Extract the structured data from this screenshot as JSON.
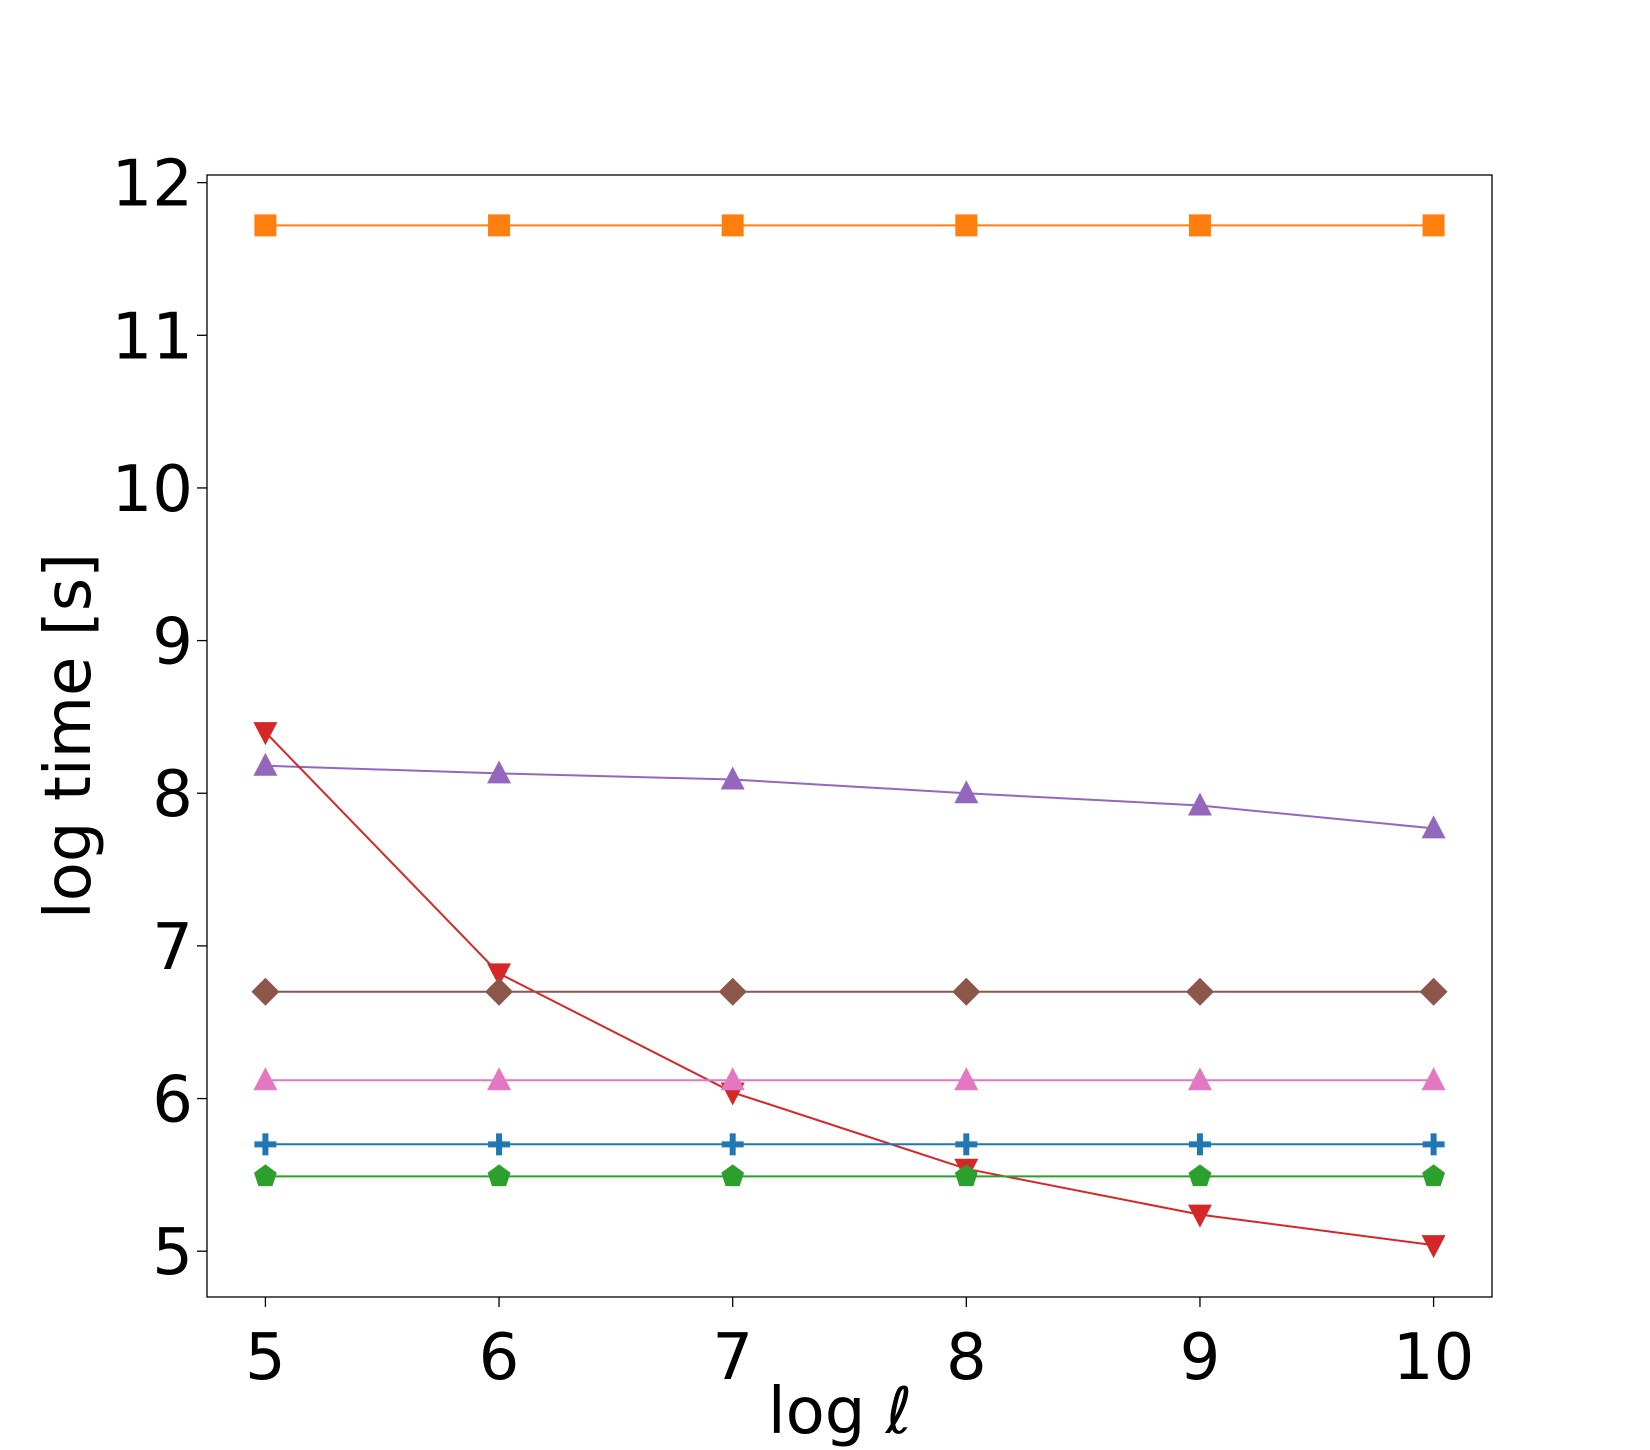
{
  "chart_data": {
    "type": "line",
    "title": "",
    "xlabel": "log ℓ",
    "ylabel": "log time [s]",
    "xlim": [
      4.75,
      10.25
    ],
    "ylim": [
      4.7,
      12.05
    ],
    "x_ticks": [
      5,
      6,
      7,
      8,
      9,
      10
    ],
    "y_ticks": [
      5,
      6,
      7,
      8,
      9,
      10,
      11,
      12
    ],
    "grid": false,
    "legend": "none",
    "x": [
      5,
      6,
      7,
      8,
      9,
      10
    ],
    "series": [
      {
        "color": "#ff7f0e",
        "marker": "square",
        "values": [
          11.72,
          11.72,
          11.72,
          11.72,
          11.72,
          11.72
        ]
      },
      {
        "color": "#9467bd",
        "marker": "triangle-up",
        "values": [
          8.18,
          8.13,
          8.09,
          8.0,
          7.92,
          7.77
        ]
      },
      {
        "color": "#d62728",
        "marker": "triangle-down",
        "values": [
          8.4,
          6.82,
          6.04,
          5.54,
          5.24,
          5.04
        ]
      },
      {
        "color": "#8c564b",
        "marker": "diamond",
        "values": [
          6.7,
          6.7,
          6.7,
          6.7,
          6.7,
          6.7
        ]
      },
      {
        "color": "#e377c2",
        "marker": "triangle-up",
        "values": [
          6.12,
          6.12,
          6.12,
          6.12,
          6.12,
          6.12
        ]
      },
      {
        "color": "#1f77b4",
        "marker": "plus",
        "values": [
          5.7,
          5.7,
          5.7,
          5.7,
          5.7,
          5.7
        ]
      },
      {
        "color": "#2ca02c",
        "marker": "pentagon",
        "values": [
          5.49,
          5.49,
          5.49,
          5.49,
          5.49,
          5.49
        ]
      }
    ]
  }
}
